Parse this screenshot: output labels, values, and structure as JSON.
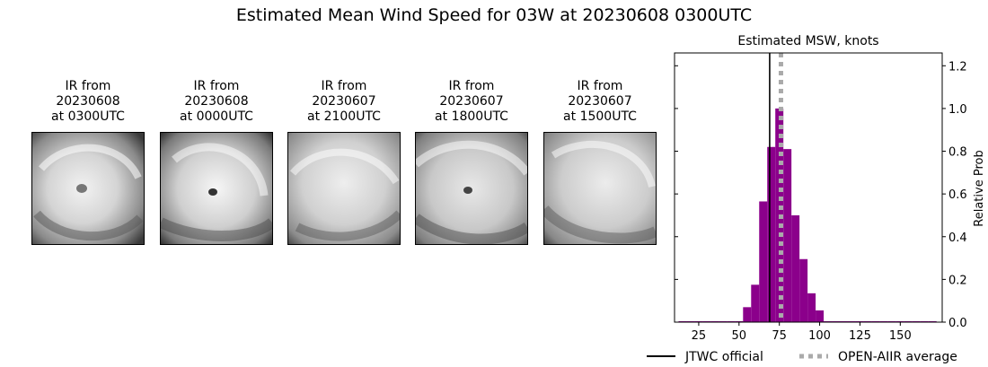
{
  "suptitle": "Estimated Mean Wind Speed for 03W at 20230608 0300UTC",
  "ir_panels": [
    {
      "title": "IR from\n20230608\nat 0300UTC"
    },
    {
      "title": "IR from\n20230608\nat 0000UTC"
    },
    {
      "title": "IR from\n20230607\nat 2100UTC"
    },
    {
      "title": "IR from\n20230607\nat 1800UTC"
    },
    {
      "title": "IR from\n20230607\nat 1500UTC"
    }
  ],
  "chart_data": {
    "type": "bar",
    "title": "Estimated MSW, knots",
    "xlabel": "",
    "ylabel": "Relative Prob",
    "xlim": [
      10,
      176
    ],
    "ylim": [
      0,
      1.26
    ],
    "xticks": [
      25,
      50,
      75,
      100,
      125,
      150
    ],
    "yticks": [
      0.0,
      0.2,
      0.4,
      0.6,
      0.8,
      1.0,
      1.2
    ],
    "bin_width": 5,
    "bins": [
      {
        "x": 15,
        "y": 0.0
      },
      {
        "x": 20,
        "y": 0.0
      },
      {
        "x": 25,
        "y": 0.0
      },
      {
        "x": 30,
        "y": 0.0
      },
      {
        "x": 35,
        "y": 0.0
      },
      {
        "x": 40,
        "y": 0.0
      },
      {
        "x": 45,
        "y": 0.0
      },
      {
        "x": 50,
        "y": 0.0
      },
      {
        "x": 55,
        "y": 0.07
      },
      {
        "x": 60,
        "y": 0.175
      },
      {
        "x": 65,
        "y": 0.565
      },
      {
        "x": 70,
        "y": 0.82
      },
      {
        "x": 75,
        "y": 1.0
      },
      {
        "x": 80,
        "y": 0.81
      },
      {
        "x": 85,
        "y": 0.5
      },
      {
        "x": 90,
        "y": 0.295
      },
      {
        "x": 95,
        "y": 0.135
      },
      {
        "x": 100,
        "y": 0.055
      },
      {
        "x": 105,
        "y": 0.0
      },
      {
        "x": 110,
        "y": 0.0
      },
      {
        "x": 115,
        "y": 0.0
      },
      {
        "x": 120,
        "y": 0.0
      },
      {
        "x": 125,
        "y": 0.0
      },
      {
        "x": 130,
        "y": 0.0
      },
      {
        "x": 135,
        "y": 0.0
      },
      {
        "x": 140,
        "y": 0.0
      },
      {
        "x": 145,
        "y": 0.0
      },
      {
        "x": 150,
        "y": 0.0
      },
      {
        "x": 155,
        "y": 0.0
      },
      {
        "x": 160,
        "y": 0.0
      },
      {
        "x": 165,
        "y": 0.0
      },
      {
        "x": 170,
        "y": 0.0
      }
    ],
    "bar_color": "#8b008b",
    "vlines": [
      {
        "name": "JTWC official",
        "x": 69,
        "color": "#000000",
        "style": "solid"
      },
      {
        "name": "OPEN-AIIR average",
        "x": 76,
        "color": "#aaaaaa",
        "style": "dotted"
      }
    ],
    "legend_placement": "bottom-right"
  }
}
